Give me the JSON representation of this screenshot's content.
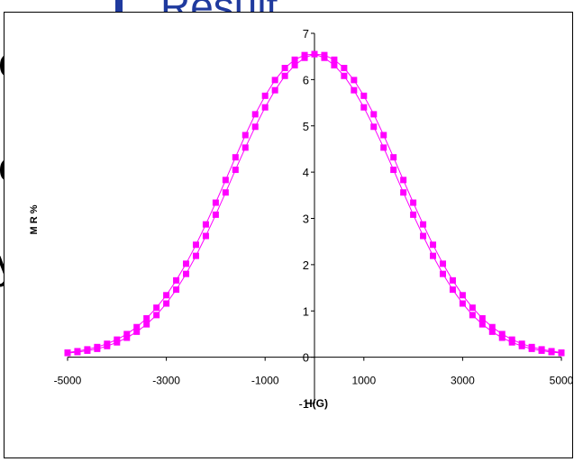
{
  "background": {
    "title_fragment": "Result",
    "bullet_color": "#1f3a9e",
    "text_fragments": [
      "e",
      "e",
      "y"
    ]
  },
  "chart_data": {
    "type": "scatter",
    "title": "",
    "xlabel": "H(G)",
    "ylabel": "M R %",
    "xlim": [
      -5000,
      5000
    ],
    "ylim": [
      -1,
      7
    ],
    "xticks": [
      -5000,
      -3000,
      -1000,
      1000,
      3000,
      5000
    ],
    "yticks": [
      -1,
      0,
      1,
      2,
      3,
      4,
      5,
      6,
      7
    ],
    "grid": false,
    "legend": "none",
    "marker": "square",
    "color": "#ff00ff",
    "series": [
      {
        "x": [
          -5000,
          -4800,
          -4600,
          -4400,
          -4200,
          -4000,
          -3800,
          -3600,
          -3400,
          -3200,
          -3000,
          -2800,
          -2600,
          -2400,
          -2200,
          -2000,
          -1800,
          -1600,
          -1400,
          -1200,
          -1000,
          -800,
          -600,
          -400,
          -200,
          0,
          200,
          400,
          600,
          800,
          1000,
          1200,
          1400,
          1600,
          1800,
          2000,
          2200,
          2400,
          2600,
          2800,
          3000,
          3200,
          3400,
          3600,
          3800,
          4000,
          4200,
          4400,
          4600,
          4800,
          5000
        ],
        "y": [
          0.1,
          0.13,
          0.17,
          0.22,
          0.29,
          0.38,
          0.5,
          0.65,
          0.84,
          1.07,
          1.34,
          1.66,
          2.02,
          2.43,
          2.87,
          3.34,
          3.83,
          4.32,
          4.8,
          5.25,
          5.65,
          5.99,
          6.25,
          6.43,
          6.53,
          6.55,
          6.47,
          6.31,
          6.08,
          5.77,
          5.4,
          4.98,
          4.53,
          4.05,
          3.56,
          3.08,
          2.62,
          2.19,
          1.8,
          1.46,
          1.16,
          0.91,
          0.71,
          0.55,
          0.42,
          0.32,
          0.24,
          0.18,
          0.14,
          0.11,
          0.09
        ]
      },
      {
        "x": [
          -5000,
          -4800,
          -4600,
          -4400,
          -4200,
          -4000,
          -3800,
          -3600,
          -3400,
          -3200,
          -3000,
          -2800,
          -2600,
          -2400,
          -2200,
          -2000,
          -1800,
          -1600,
          -1400,
          -1200,
          -1000,
          -800,
          -600,
          -400,
          -200,
          0,
          200,
          400,
          600,
          800,
          1000,
          1200,
          1400,
          1600,
          1800,
          2000,
          2200,
          2400,
          2600,
          2800,
          3000,
          3200,
          3400,
          3600,
          3800,
          4000,
          4200,
          4400,
          4600,
          4800,
          5000
        ],
        "y": [
          0.09,
          0.11,
          0.14,
          0.18,
          0.24,
          0.32,
          0.42,
          0.55,
          0.71,
          0.91,
          1.16,
          1.46,
          1.8,
          2.19,
          2.62,
          3.08,
          3.56,
          4.05,
          4.53,
          4.98,
          5.4,
          5.77,
          6.08,
          6.31,
          6.47,
          6.55,
          6.53,
          6.43,
          6.25,
          5.99,
          5.65,
          5.25,
          4.8,
          4.32,
          3.83,
          3.34,
          2.87,
          2.43,
          2.02,
          1.66,
          1.34,
          1.07,
          0.84,
          0.65,
          0.5,
          0.38,
          0.29,
          0.22,
          0.17,
          0.13,
          0.1
        ]
      }
    ]
  }
}
